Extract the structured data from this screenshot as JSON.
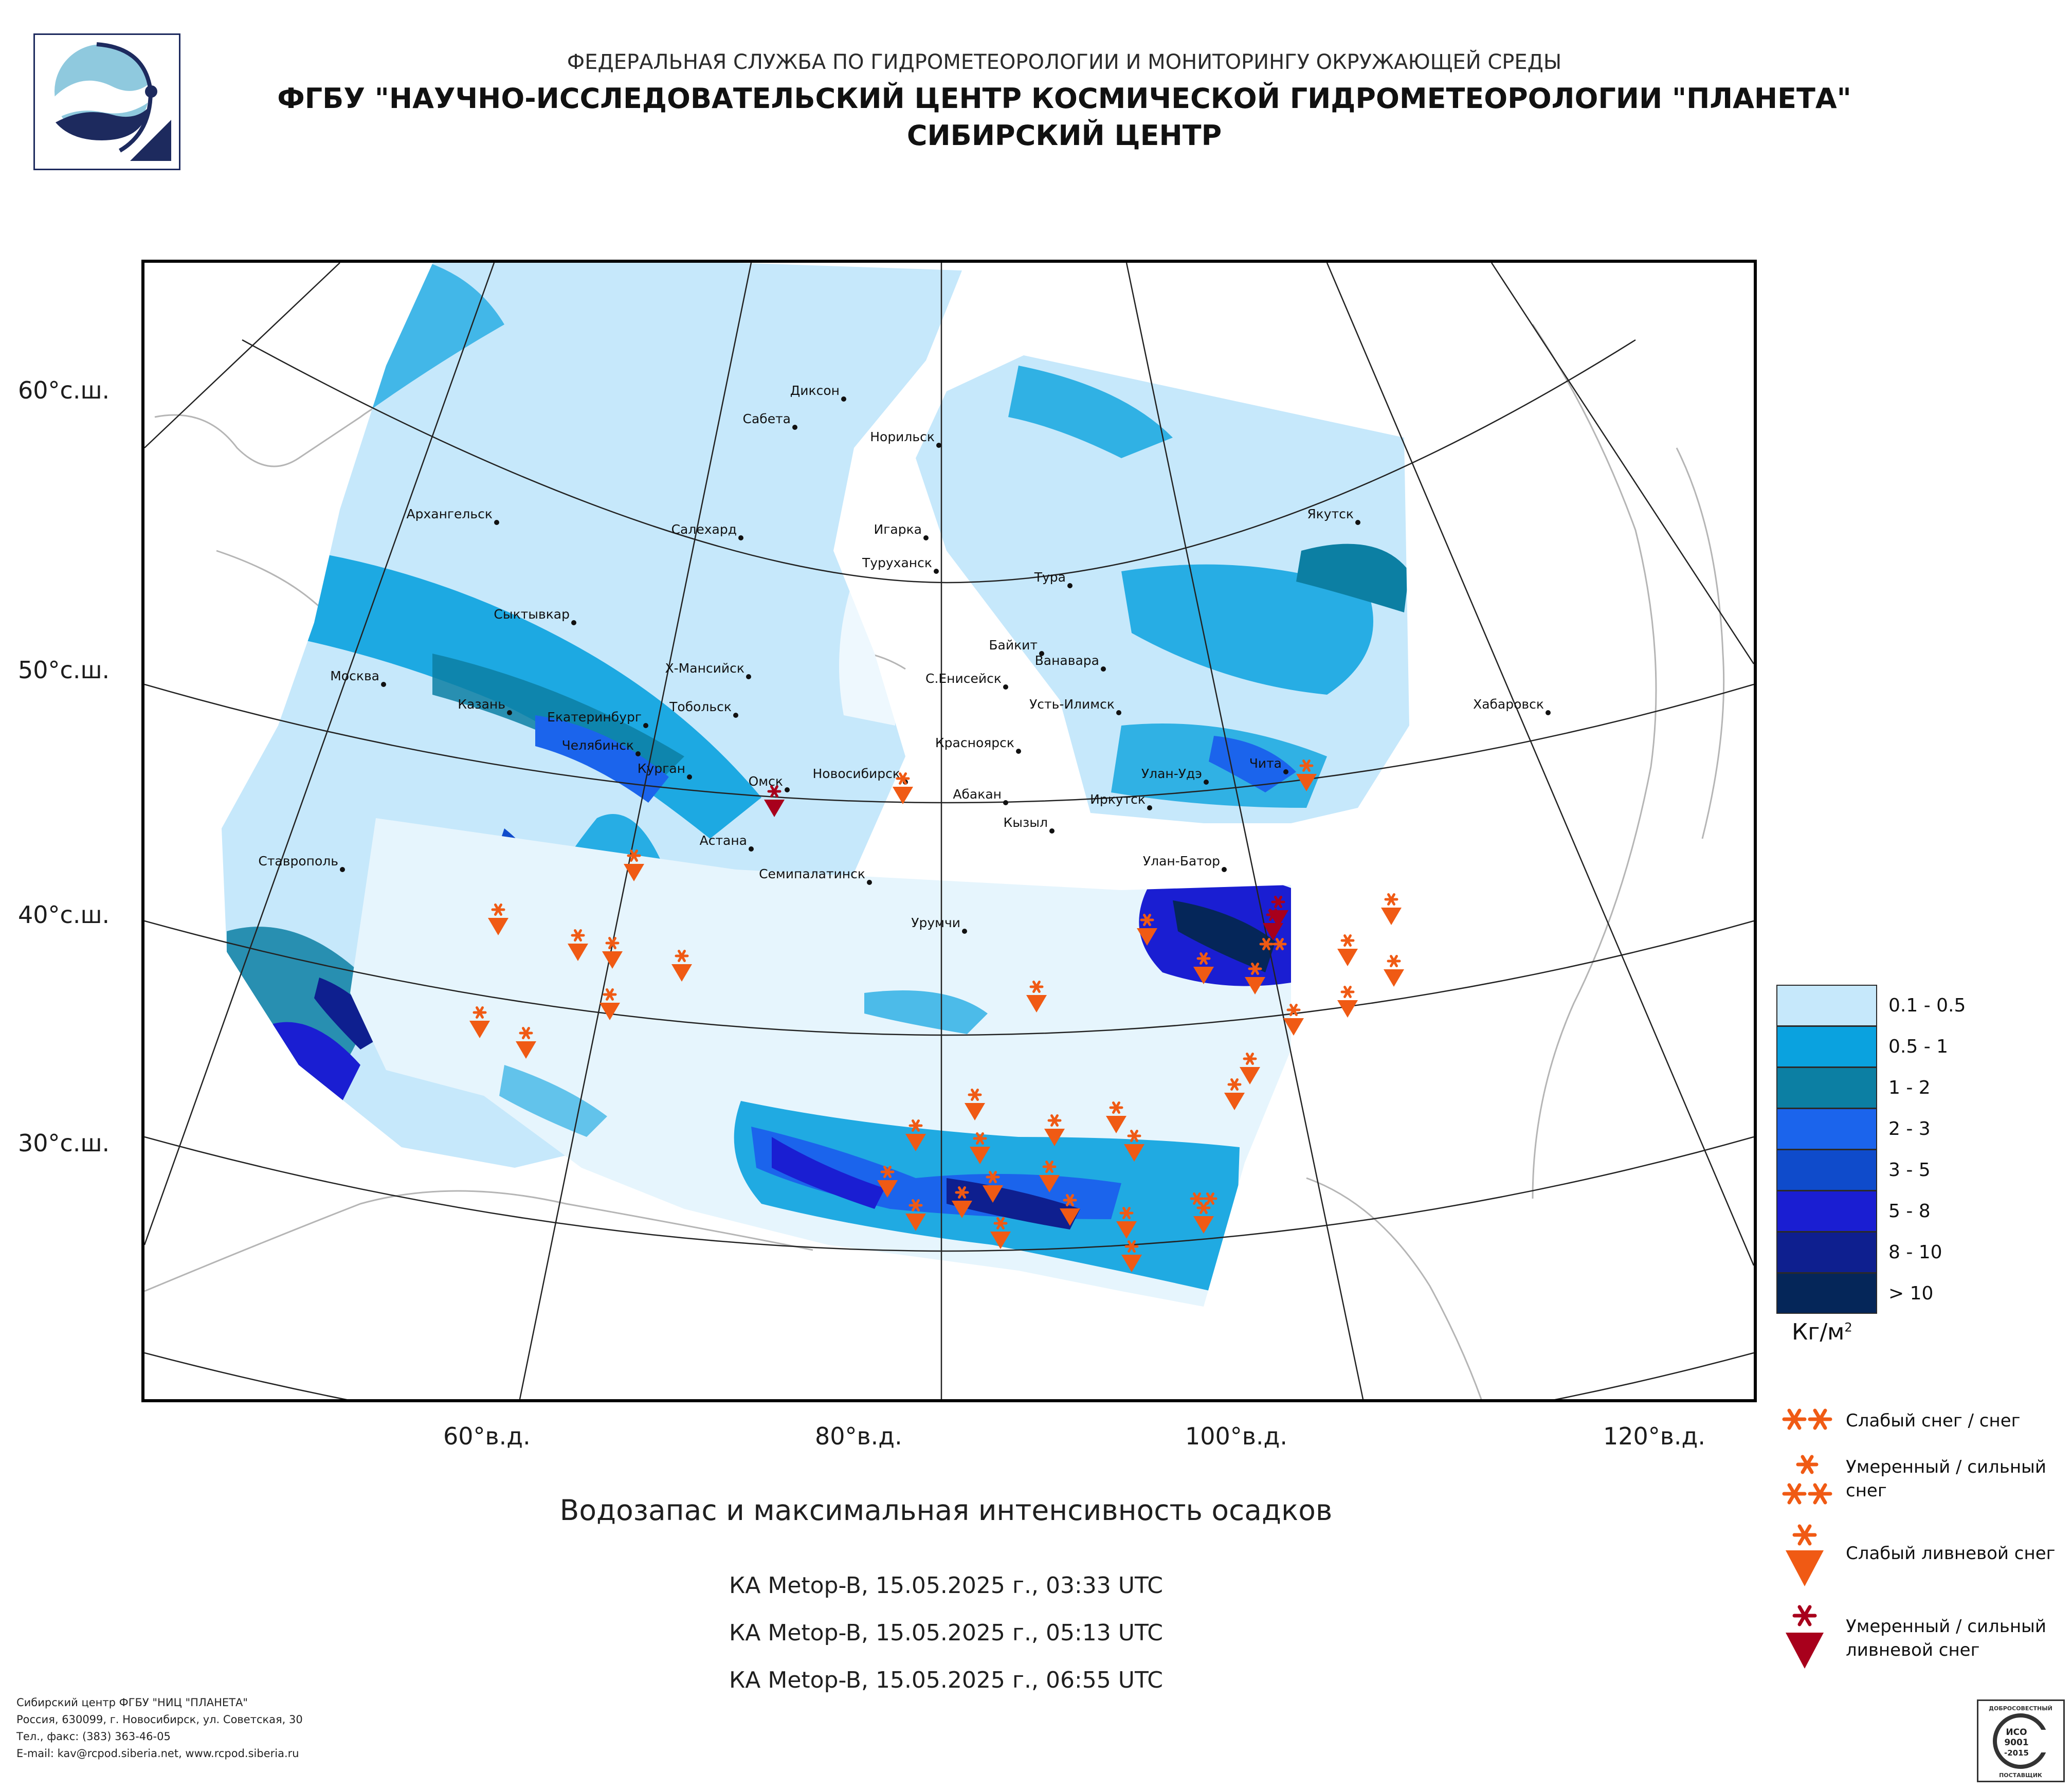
{
  "header": {
    "line1": "ФЕДЕРАЛЬНАЯ СЛУЖБА ПО ГИДРОМЕТЕОРОЛОГИИ И МОНИТОРИНГУ ОКРУЖАЮЩЕЙ СРЕДЫ",
    "line2": "ФГБУ \"НАУЧНО-ИССЛЕДОВАТЕЛЬСКИЙ ЦЕНТР КОСМИЧЕСКОЙ ГИДРОМЕТЕОРОЛОГИИ \"ПЛАНЕТА\"",
    "line3": "СИБИРСКИЙ ЦЕНТР"
  },
  "map": {
    "lat_labels": [
      "60°с.ш.",
      "50°с.ш.",
      "40°с.ш.",
      "30°с.ш."
    ],
    "lon_labels": [
      "60°в.д.",
      "80°в.д.",
      "100°в.д.",
      "120°в.д."
    ],
    "cities": [
      "Диксон",
      "Сабета",
      "Норильск",
      "Архангельск",
      "Салехард",
      "Игарка",
      "Туруханск",
      "Якутск",
      "Тура",
      "Сыктывкар",
      "Байкит",
      "Ванавара",
      "Москва",
      "Х-Мансийск",
      "С.Енисейск",
      "Усть-Илимск",
      "Казань",
      "Екатеринбург",
      "Тобольск",
      "Хабаровск",
      "Челябинск",
      "Курган",
      "Красноярск",
      "Чита",
      "Омск",
      "Новосибирск",
      "Абакан",
      "Улан-Удэ",
      "Иркутск",
      "Кызыл",
      "Астана",
      "Ставрополь",
      "Улан-Батор",
      "Семипалатинск",
      "Урумчи"
    ],
    "colors": {
      "land_border": "#b5b5b5",
      "graticule": "#222222",
      "snow_light": "#f05a14",
      "snow_heavy": "#a8001c"
    }
  },
  "legend": {
    "items": [
      {
        "label": "0.1 - 0.5",
        "color": "#c6e8fb"
      },
      {
        "label": "0.5 - 1",
        "color": "#0aa2df"
      },
      {
        "label": "1 - 2",
        "color": "#0c7fa3"
      },
      {
        "label": "2 - 3",
        "color": "#1b64ec"
      },
      {
        "label": "3 - 5",
        "color": "#0f4bcb"
      },
      {
        "label": "5 - 8",
        "color": "#1a1ed2"
      },
      {
        "label": "8 - 10",
        "color": "#0e1f8f"
      },
      {
        "label": "> 10",
        "color": "#052659"
      }
    ],
    "unit": "Кг/м",
    "unit_sup": "2"
  },
  "symbols": [
    {
      "icon": "light-snow-icon",
      "label": "Слабый снег / снег"
    },
    {
      "icon": "moderate-heavy-snow-icon",
      "label": "Умеренный / сильный снег"
    },
    {
      "icon": "light-shower-snow-icon",
      "label": "Слабый ливневой снег"
    },
    {
      "icon": "moderate-heavy-shower-snow-icon",
      "label": "Умеренный / сильный ливневой снег"
    }
  ],
  "caption": {
    "title": "Водозапас и максимальная интенсивность осадков",
    "passes": [
      "КА Metop-B, 15.05.2025 г., 03:33 UTC",
      "КА Metop-B, 15.05.2025 г., 05:13 UTC",
      "КА Metop-B, 15.05.2025 г., 06:55 UTC"
    ]
  },
  "footer": {
    "org": "Сибирский центр ФГБУ \"НИЦ \"ПЛАНЕТА\"",
    "address": "Россия, 630099, г. Новосибирск, ул. Советская, 30",
    "phone": "Тел., факс: (383) 363-46-05",
    "email": "E-mail: kav@rcpod.siberia.net, www.rcpod.siberia.ru"
  },
  "cert": {
    "top": "ДОБРОСОВЕСТНЫЙ",
    "l1": "ИСО",
    "l2": "9001",
    "l3": "-2015",
    "bottom": "ПОСТАВЩИК"
  }
}
